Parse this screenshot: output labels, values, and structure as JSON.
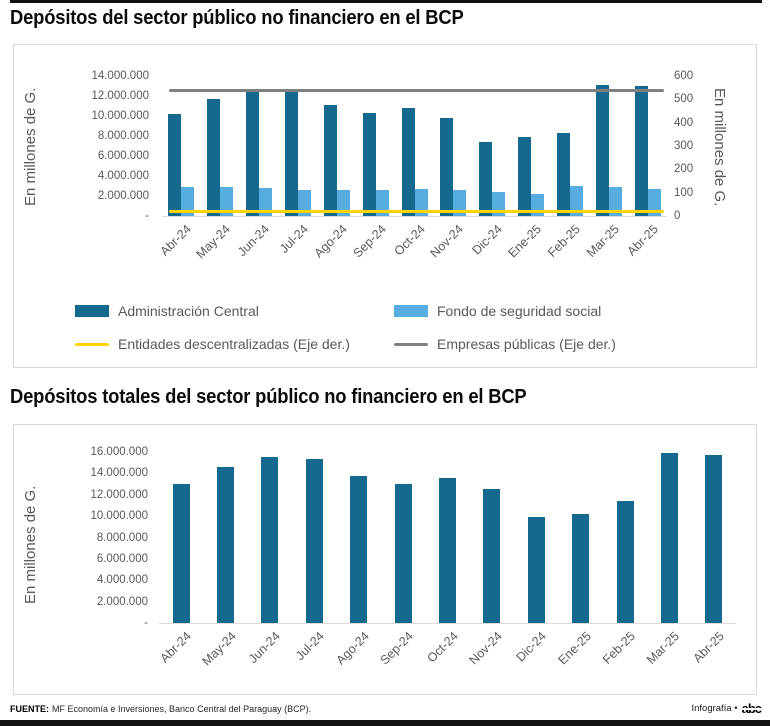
{
  "footer": {
    "source_label": "FUENTE:",
    "source_text": "MF Economía e Inversiones, Banco Central del Paraguay (BCP).",
    "credit_text": "Infografía •",
    "logo_text": "abc"
  },
  "colors": {
    "dark_blue": "#15698f",
    "light_blue": "#58ade0",
    "yellow": "#ffd400",
    "gray_line": "#808080",
    "axis_text": "#595959",
    "panel_border": "#d8d8d8"
  },
  "chart_data": [
    {
      "type": "bar",
      "title": "Depósitos del sector público no financiero en el BCP",
      "categories": [
        "Abr-24",
        "May-24",
        "Jun-24",
        "Jul-24",
        "Ago-24",
        "Sep-24",
        "Oct-24",
        "Nov-24",
        "Dic-24",
        "Ene-25",
        "Feb-25",
        "Mar-25",
        "Abr-25"
      ],
      "ylabel_left": "En millones de G.",
      "ylabel_right": "En millones de G.",
      "ylim_left": [
        0,
        14000000
      ],
      "ylim_right": [
        0,
        600
      ],
      "yticks_left": [
        "14.000.000",
        "12.000.000",
        "10.000.000",
        "8.000.000",
        "6.000.000",
        "4.000.000",
        "2.000.000",
        "-"
      ],
      "yticks_right": [
        "600",
        "500",
        "400",
        "300",
        "200",
        "100",
        "0"
      ],
      "grid": false,
      "legend_position": "bottom",
      "series": [
        {
          "name": "Administración Central",
          "type": "bar",
          "axis": "left",
          "color": "#15698f",
          "values": [
            10200000,
            11700000,
            12500000,
            12500000,
            11100000,
            10300000,
            10800000,
            9800000,
            7400000,
            7900000,
            8300000,
            13100000,
            13000000
          ]
        },
        {
          "name": "Fondo de seguridad social",
          "type": "bar",
          "axis": "left",
          "color": "#58ade0",
          "values": [
            2900000,
            2900000,
            2800000,
            2600000,
            2600000,
            2600000,
            2700000,
            2600000,
            2400000,
            2200000,
            3000000,
            2900000,
            2700000
          ]
        },
        {
          "name": "Entidades descentralizadas (Eje der.)",
          "type": "line",
          "axis": "right",
          "color": "#ffd400",
          "values": [
            20,
            20,
            20,
            20,
            20,
            20,
            20,
            20,
            20,
            20,
            20,
            20,
            20
          ]
        },
        {
          "name": "Empresas  públicas (Eje der.)",
          "type": "line",
          "axis": "right",
          "color": "#808080",
          "values": [
            540,
            540,
            540,
            540,
            540,
            540,
            540,
            540,
            540,
            540,
            540,
            540,
            540
          ]
        }
      ]
    },
    {
      "type": "bar",
      "title": "Depósitos totales del sector público no financiero en el BCP",
      "categories": [
        "Abr-24",
        "May-24",
        "Jun-24",
        "Jul-24",
        "Ago-24",
        "Sep-24",
        "Oct-24",
        "Nov-24",
        "Dic-24",
        "Ene-25",
        "Feb-25",
        "Mar-25",
        "Abr-25"
      ],
      "ylabel": "En millones de G.",
      "ylim": [
        0,
        16000000
      ],
      "yticks": [
        "16.000.000",
        "14.000.000",
        "12.000.000",
        "10.000.000",
        "8.000.000",
        "6.000.000",
        "4.000.000",
        "2.000.000",
        "-"
      ],
      "grid": false,
      "series": [
        {
          "name": "Depósitos totales",
          "type": "bar",
          "axis": "left",
          "color": "#15698f",
          "values": [
            13000000,
            14600000,
            15500000,
            15300000,
            13800000,
            13000000,
            13600000,
            12500000,
            9900000,
            10200000,
            11400000,
            15900000,
            15700000
          ]
        }
      ]
    }
  ]
}
